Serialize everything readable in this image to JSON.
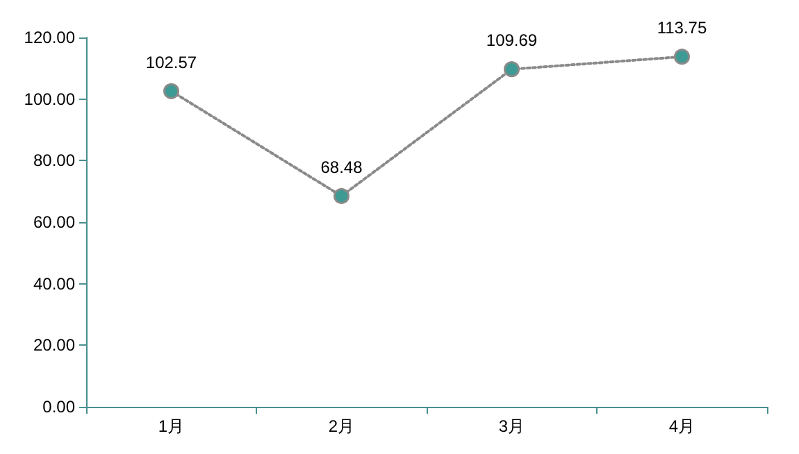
{
  "chart_data": {
    "type": "line",
    "categories": [
      "1月",
      "2月",
      "3月",
      "4月"
    ],
    "series": [
      {
        "color": "#3d9a94",
        "values": [
          102.57,
          68.48,
          109.69,
          113.75
        ]
      }
    ],
    "ylim": [
      0,
      120
    ],
    "yticks": [
      {
        "value": 0,
        "label": "0.00"
      },
      {
        "value": 20,
        "label": "20.00"
      },
      {
        "value": 40,
        "label": "40.00"
      },
      {
        "value": 60,
        "label": "60.00"
      },
      {
        "value": 80,
        "label": "80.00"
      },
      {
        "value": 100,
        "label": "100.00"
      },
      {
        "value": 120,
        "label": "120.00"
      }
    ],
    "grid": false,
    "marker": "circle",
    "line_style": "dotted",
    "data_labels": true
  }
}
